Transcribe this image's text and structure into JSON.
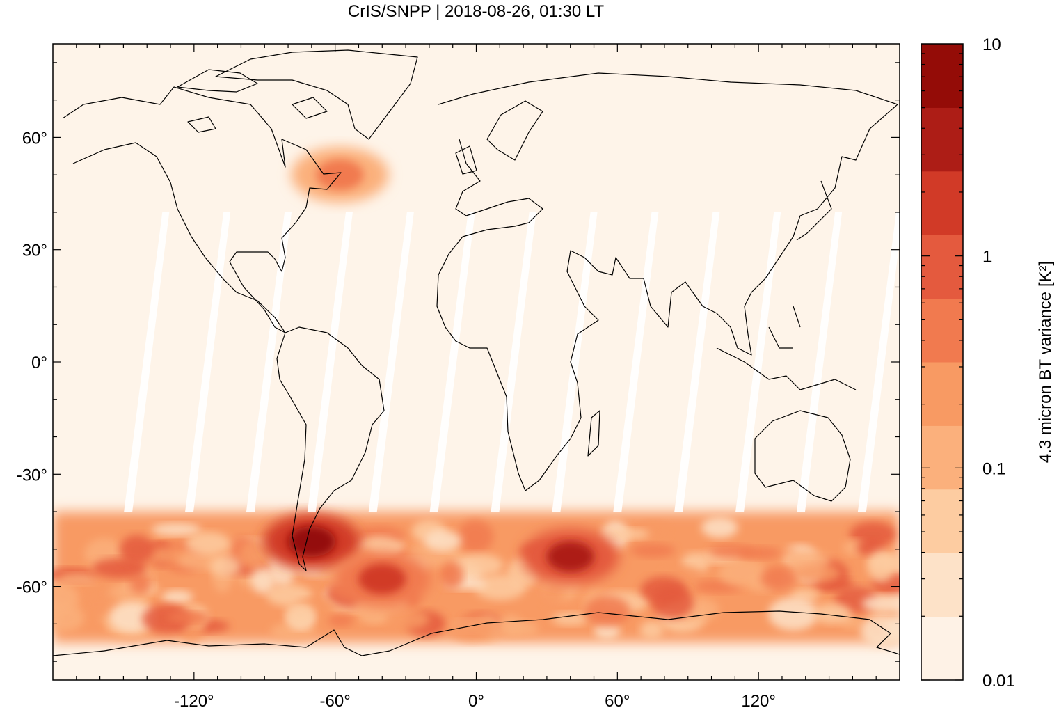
{
  "chart_data": {
    "type": "heatmap",
    "title": "CrIS/SNPP | 2018-08-26, 01:30 LT",
    "xlabel": "",
    "ylabel": "",
    "xlim": [
      -180,
      180
    ],
    "ylim": [
      -85,
      85
    ],
    "xticks": [
      -120,
      -60,
      0,
      60,
      120
    ],
    "xtick_labels": [
      "-120°",
      "-60°",
      "0°",
      "60°",
      "120°"
    ],
    "yticks": [
      60,
      30,
      0,
      -30,
      -60
    ],
    "ytick_labels": [
      "60°",
      "30°",
      "0°",
      "-30°",
      "-60°"
    ],
    "grid": false,
    "colorbar": {
      "label": "4.3 micron BT variance [K²]",
      "scale": "log",
      "range": [
        0.01,
        10
      ],
      "tick_values": [
        0.01,
        0.1,
        1,
        10
      ],
      "tick_labels": [
        "0.01",
        "0.1",
        "1",
        "10"
      ],
      "colors": [
        "#fef2e6",
        "#fde2c8",
        "#fdcca1",
        "#fbb07c",
        "#f89a63",
        "#f17a4f",
        "#e45a3e",
        "#d13a27",
        "#ad1d16",
        "#940c07"
      ]
    },
    "features": [
      {
        "label": "Southern Ocean storm-track band",
        "lat_range": [
          -75,
          -40
        ],
        "lon_range": [
          -180,
          180
        ],
        "typical_variance": 0.3
      },
      {
        "label": "Patagonia / southern Andes maximum",
        "lon": -70,
        "lat": -48,
        "variance": 8
      },
      {
        "label": "South Atlantic maximum",
        "lon": -40,
        "lat": -58,
        "variance": 2
      },
      {
        "label": "South Indian Ocean maximum",
        "lon": 40,
        "lat": -52,
        "variance": 3
      },
      {
        "label": "Newfoundland / Gulf of St. Lawrence",
        "lon": -58,
        "lat": 50,
        "variance": 0.4
      }
    ],
    "orbit_gaps": "narrow white swaths between satellite orbits across the tropics and mid-latitudes"
  }
}
